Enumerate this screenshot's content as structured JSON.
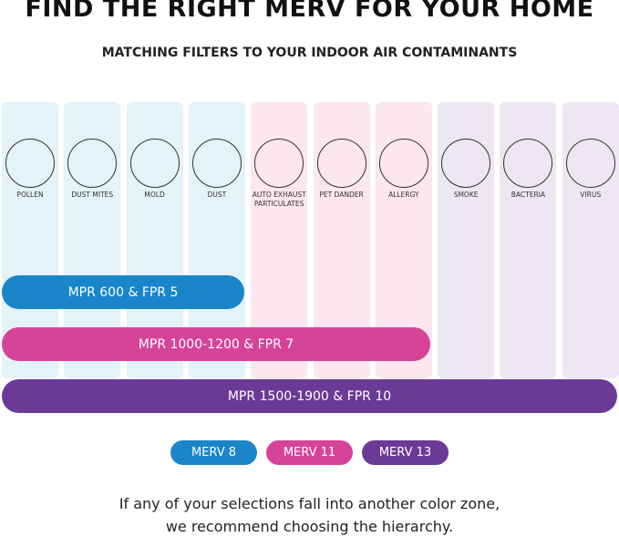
{
  "header": {
    "title": "FIND THE RIGHT MERV FOR YOUR HOME",
    "subtitle": "MATCHING FILTERS TO YOUR INDOOR AIR CONTAMINANTS"
  },
  "contaminants": [
    "POLLEN",
    "DUST MITES",
    "MOLD",
    "DUST",
    "AUTO EXHAUST PARTICULATES",
    "PET DANDER",
    "ALLERGY",
    "SMOKE",
    "BACTERIA",
    "VIRUS"
  ],
  "filters": [
    "MPR 600 & FPR 5",
    "MPR 1000-1200 & FPR 7",
    "MPR 1500-1900 & FPR 10"
  ],
  "legend": [
    "MERV 8",
    "MERV 11",
    "MERV 13"
  ],
  "footer": [
    "If any of your selections fall into another color zone,",
    "we recommend choosing the hierarchy."
  ]
}
